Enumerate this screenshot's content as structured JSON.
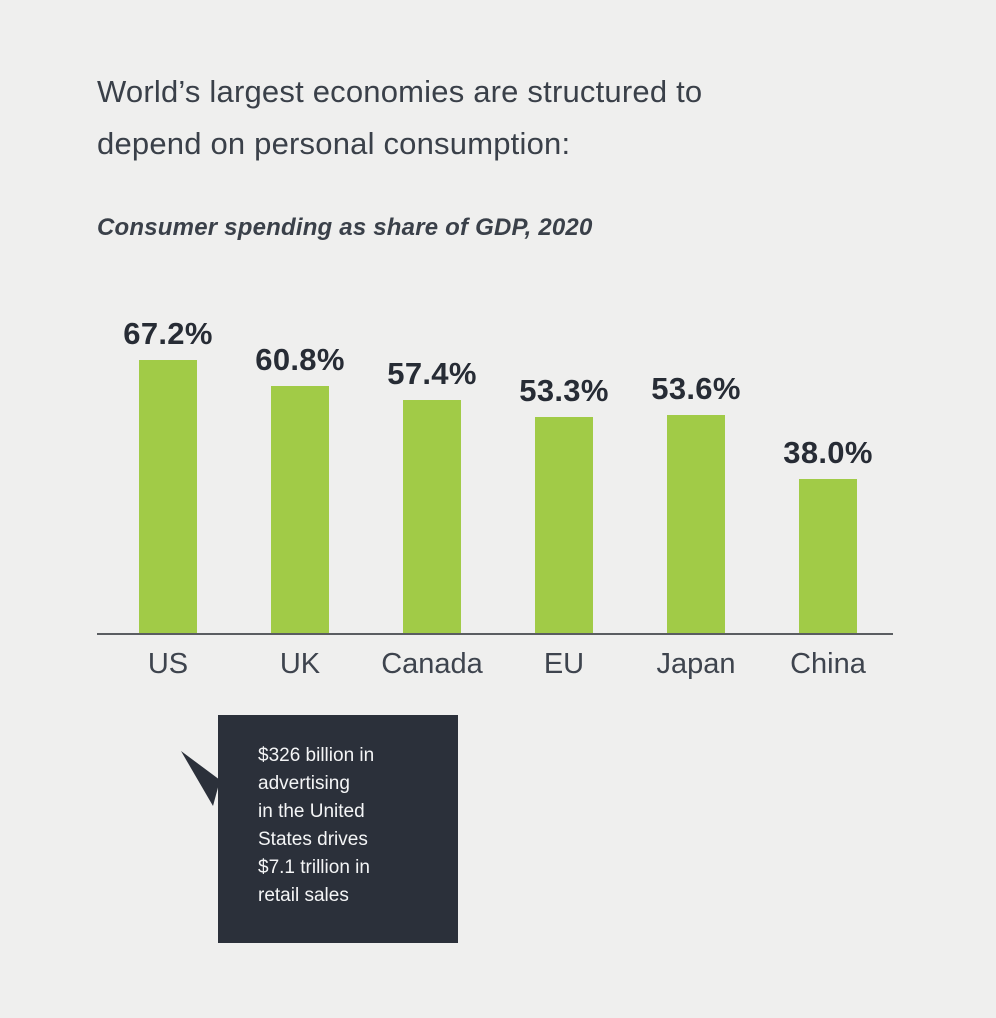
{
  "title": "World’s largest economies are structured to depend on personal consumption:",
  "subtitle": "Consumer spending as share of GDP, 2020",
  "chart_data": {
    "type": "bar",
    "title": "World’s largest economies are structured to depend on personal consumption:",
    "subtitle": "Consumer spending as share of GDP, 2020",
    "categories": [
      "US",
      "UK",
      "Canada",
      "EU",
      "Japan",
      "China"
    ],
    "values": [
      67.2,
      60.8,
      57.4,
      53.3,
      53.6,
      38.0
    ],
    "value_labels": [
      "67.2%",
      "60.8%",
      "57.4%",
      "53.3%",
      "53.6%",
      "38.0%"
    ],
    "xlabel": "",
    "ylim": [
      0,
      70
    ],
    "grid": false,
    "legend": false,
    "bar_color": "#a1cb47"
  },
  "callout": {
    "lines": [
      "$326 billion in",
      "advertising",
      "in the United",
      "States drives",
      "$7.1 trillion in",
      "retail sales"
    ],
    "background": "#2b303a",
    "text_color": "#f4f5f6"
  },
  "colors": {
    "page_background": "#efefee",
    "bar": "#a1cb47",
    "title_text": "#3a4049",
    "value_label_text": "#272c35",
    "category_text": "#3e444e",
    "axis_line": "#5a5d61",
    "callout_background": "#2b303a",
    "callout_text": "#f4f5f6"
  }
}
